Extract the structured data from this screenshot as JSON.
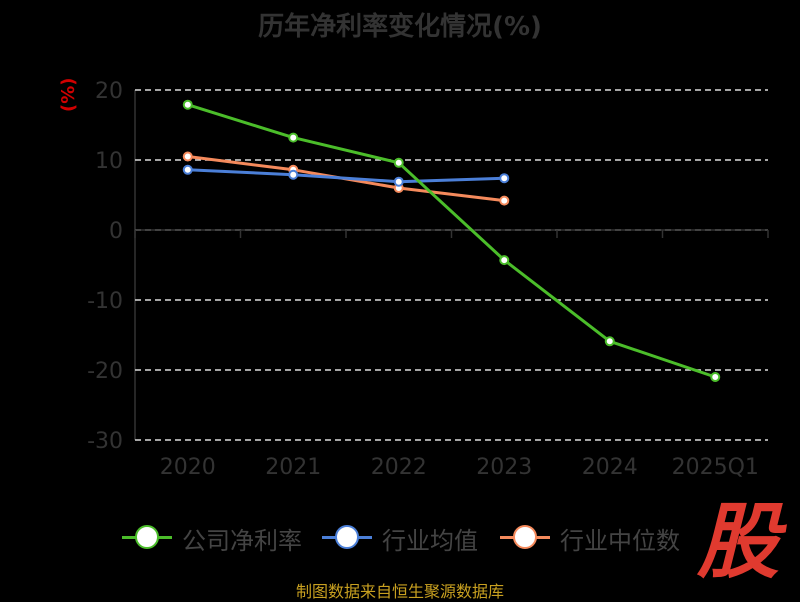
{
  "chart_data": {
    "type": "line",
    "title": "历年净利率变化情况(%)",
    "ylabel": "(%)",
    "xlabel": "",
    "categories": [
      "2020",
      "2021",
      "2022",
      "2023",
      "2024",
      "2025Q1"
    ],
    "ylim": [
      -30,
      20
    ],
    "yticks": [
      "20",
      "10",
      "0",
      "-10",
      "-20",
      "-30"
    ],
    "grid": true,
    "legend_position": "bottom",
    "series": [
      {
        "name": "公司净利率",
        "color": "#4bbd2a",
        "values": [
          17.9,
          13.2,
          9.6,
          -4.3,
          -15.9,
          -21.0
        ]
      },
      {
        "name": "行业均值",
        "color": "#4b7fd8",
        "values": [
          8.6,
          7.9,
          6.9,
          7.4,
          null,
          null
        ]
      },
      {
        "name": "行业中位数",
        "color": "#f58a5c",
        "values": [
          10.5,
          8.6,
          6.0,
          4.2,
          null,
          null
        ]
      }
    ]
  },
  "source": "制图数据来自恒生聚源数据库",
  "watermark": "股"
}
